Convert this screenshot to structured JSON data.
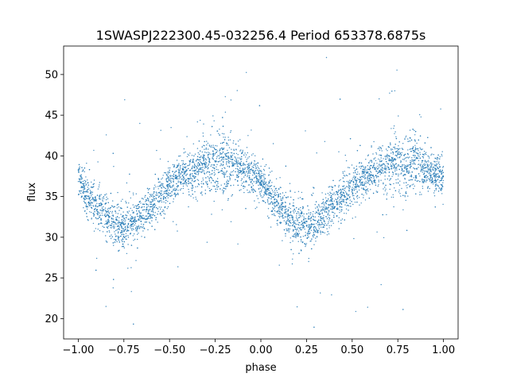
{
  "chart_data": {
    "type": "scatter",
    "title": "1SWASPJ222300.45-032256.4 Period 653378.6875s",
    "xlabel": "phase",
    "ylabel": "flux",
    "xlim": [
      -1.08,
      1.08
    ],
    "ylim": [
      17.5,
      53.5
    ],
    "xticks": [
      -1.0,
      -0.75,
      -0.5,
      -0.25,
      0.0,
      0.25,
      0.5,
      0.75,
      1.0
    ],
    "xtick_labels": [
      "−1.00",
      "−0.75",
      "−0.50",
      "−0.25",
      "0.00",
      "0.25",
      "0.50",
      "0.75",
      "1.00"
    ],
    "yticks": [
      20,
      25,
      30,
      35,
      40,
      45,
      50
    ],
    "ytick_labels": [
      "20",
      "25",
      "30",
      "35",
      "40",
      "45",
      "50"
    ],
    "grid": false,
    "marker_color": "#1f77b4",
    "series": [
      {
        "x": [
          -1.0,
          -0.975,
          -0.95,
          -0.925,
          -0.9,
          -0.875,
          -0.85,
          -0.825,
          -0.8,
          -0.775,
          -0.75,
          -0.725,
          -0.7,
          -0.675,
          -0.65,
          -0.625,
          -0.6,
          -0.575,
          -0.55,
          -0.525,
          -0.5,
          -0.475,
          -0.45,
          -0.425,
          -0.4,
          -0.375,
          -0.35,
          -0.325,
          -0.3,
          -0.275,
          -0.25,
          -0.225,
          -0.2,
          -0.175,
          -0.15,
          -0.125,
          -0.1,
          -0.075,
          -0.05,
          -0.025,
          0.0,
          0.025,
          0.05,
          0.075,
          0.1,
          0.125,
          0.15,
          0.175,
          0.2,
          0.225,
          0.25,
          0.275,
          0.3,
          0.325,
          0.35,
          0.375,
          0.4,
          0.425,
          0.45,
          0.475,
          0.5,
          0.525,
          0.55,
          0.575,
          0.6,
          0.625,
          0.65,
          0.675,
          0.7,
          0.725,
          0.75,
          0.775,
          0.8,
          0.825,
          0.85,
          0.875,
          0.9,
          0.925,
          0.95,
          0.975,
          1.0
        ],
        "y": [
          37.5,
          36.2,
          35.0,
          34.3,
          33.8,
          33.2,
          32.6,
          32.0,
          31.5,
          31.2,
          31.3,
          31.6,
          31.9,
          32.3,
          32.8,
          33.4,
          34.0,
          34.6,
          35.2,
          35.8,
          36.3,
          36.8,
          37.2,
          37.5,
          37.8,
          38.0,
          38.3,
          38.6,
          38.8,
          39.0,
          39.0,
          39.2,
          39.3,
          39.2,
          38.9,
          38.6,
          38.3,
          38.0,
          37.7,
          37.5,
          37.3,
          36.2,
          35.0,
          34.3,
          33.8,
          33.2,
          32.6,
          32.0,
          31.5,
          31.2,
          31.3,
          31.6,
          31.9,
          32.3,
          32.8,
          33.4,
          34.0,
          34.6,
          35.2,
          35.8,
          36.3,
          36.8,
          37.2,
          37.5,
          37.8,
          38.0,
          38.3,
          38.6,
          38.8,
          39.0,
          39.0,
          39.2,
          39.3,
          39.2,
          38.9,
          38.6,
          38.3,
          38.0,
          37.7,
          37.5,
          37.3
        ],
        "spread": [
          2.2,
          2.3,
          2.4,
          2.5,
          2.6,
          2.7,
          2.8,
          2.8,
          2.8,
          2.8,
          2.7,
          2.6,
          2.5,
          2.5,
          2.5,
          2.5,
          2.5,
          2.5,
          2.4,
          2.4,
          2.3,
          2.3,
          2.3,
          2.4,
          2.6,
          2.8,
          3.0,
          3.2,
          3.4,
          3.6,
          3.8,
          3.8,
          3.7,
          3.5,
          3.2,
          2.9,
          2.6,
          2.4,
          2.3,
          2.2,
          2.2,
          2.3,
          2.4,
          2.5,
          2.6,
          2.7,
          2.8,
          2.8,
          2.8,
          2.8,
          2.7,
          2.6,
          2.5,
          2.5,
          2.5,
          2.5,
          2.5,
          2.5,
          2.4,
          2.4,
          2.3,
          2.3,
          2.3,
          2.4,
          2.6,
          2.8,
          3.0,
          3.2,
          3.4,
          3.6,
          3.8,
          3.8,
          3.7,
          3.5,
          3.2,
          2.9,
          2.6,
          2.4,
          2.3,
          2.2,
          2.2
        ]
      }
    ]
  }
}
